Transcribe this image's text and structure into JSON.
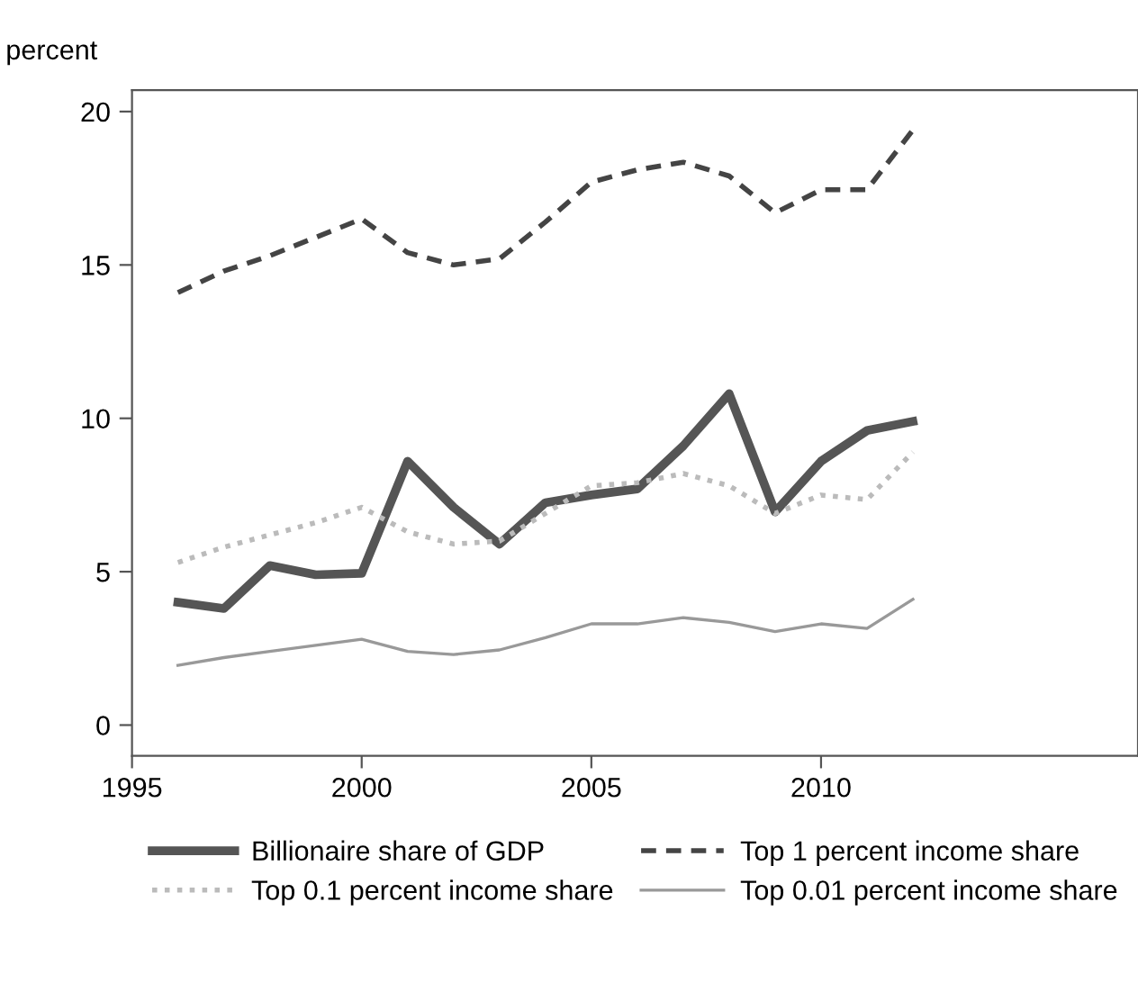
{
  "chart_data": {
    "type": "line",
    "ylabel": "percent",
    "x": [
      1996,
      1997,
      1998,
      1999,
      2000,
      2001,
      2002,
      2003,
      2004,
      2005,
      2006,
      2007,
      2008,
      2009,
      2010,
      2011,
      2012
    ],
    "series": [
      {
        "name": "Billionaire share of GDP",
        "color": "#555555",
        "line_style": "solid",
        "values": [
          4.0,
          3.8,
          5.2,
          4.9,
          4.95,
          8.6,
          7.1,
          5.9,
          7.25,
          7.5,
          7.7,
          9.1,
          10.8,
          6.95,
          8.6,
          9.6,
          9.9
        ]
      },
      {
        "name": "Top 1 percent income share",
        "color": "#444444",
        "line_style": "dashed",
        "values": [
          14.1,
          14.8,
          15.3,
          15.9,
          16.5,
          15.4,
          15.0,
          15.2,
          16.4,
          17.7,
          18.1,
          18.35,
          17.9,
          16.7,
          17.45,
          17.45,
          19.4
        ]
      },
      {
        "name": "Top 0.1 percent income share",
        "color": "#bbbbbb",
        "line_style": "dotted",
        "values": [
          5.3,
          5.8,
          6.2,
          6.6,
          7.1,
          6.3,
          5.9,
          6.0,
          6.9,
          7.8,
          7.9,
          8.2,
          7.8,
          6.9,
          7.5,
          7.35,
          8.9
        ]
      },
      {
        "name": "Top 0.01 percent income share",
        "color": "#999999",
        "line_style": "solid",
        "values": [
          1.95,
          2.2,
          2.4,
          2.6,
          2.8,
          2.4,
          2.3,
          2.45,
          2.85,
          3.3,
          3.3,
          3.5,
          3.35,
          3.05,
          3.3,
          3.15,
          4.1
        ]
      }
    ],
    "xlim": [
      1995,
      2016.9
    ],
    "ylim": [
      -1,
      20.7
    ],
    "xticks": [
      1995,
      2000,
      2005,
      2010
    ],
    "yticks": [
      0,
      5,
      10,
      15,
      20
    ],
    "grid": false,
    "legend": "bottom",
    "marker": "none"
  }
}
